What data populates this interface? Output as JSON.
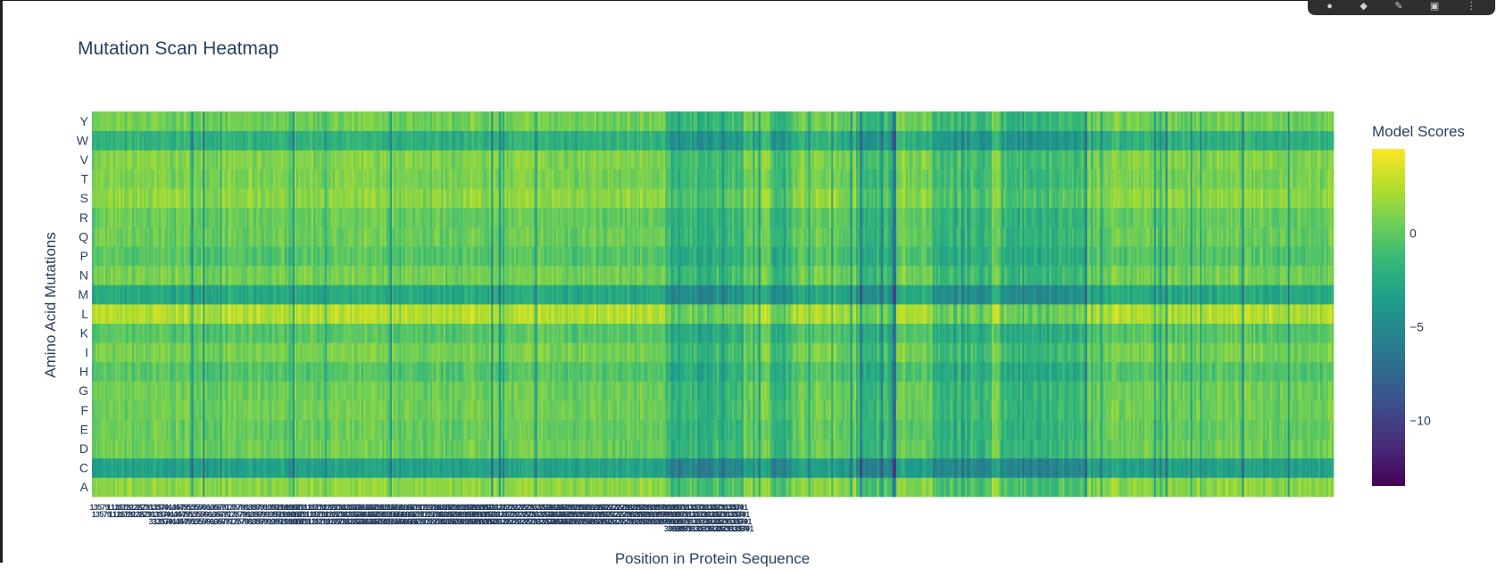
{
  "toolbar": {
    "icons": [
      "camera-icon",
      "zoom-icon",
      "pan-icon",
      "box-select-icon",
      "more-icon"
    ]
  },
  "chart_data": {
    "type": "heatmap",
    "title": "Mutation Scan Heatmap",
    "xlabel": "Position in Protein Sequence",
    "ylabel": "Amino Acid Mutations",
    "y_categories": [
      "A",
      "C",
      "D",
      "E",
      "F",
      "G",
      "H",
      "I",
      "K",
      "L",
      "M",
      "N",
      "P",
      "Q",
      "R",
      "S",
      "T",
      "V",
      "W",
      "Y"
    ],
    "num_positions": 650,
    "colorscale": "viridis",
    "colorscale_stops": [
      "#440154",
      "#482878",
      "#3e4989",
      "#31688e",
      "#26828e",
      "#1f9e89",
      "#35b779",
      "#6ece58",
      "#b5de2b",
      "#fde725"
    ],
    "colorbar": {
      "title": "Model Scores",
      "range": [
        -13.5,
        4.5
      ],
      "ticks": [
        0,
        -5,
        -10
      ],
      "tick_labels": [
        "0",
        "−5",
        "−10"
      ]
    },
    "row_mean_scores": {
      "A": 1.3,
      "C": -3.2,
      "D": 0.4,
      "E": 0.2,
      "F": 0.5,
      "G": 0.4,
      "H": -0.4,
      "I": 0.7,
      "K": -0.3,
      "L": 2.4,
      "M": -2.6,
      "N": 0.6,
      "P": -0.4,
      "Q": 0.3,
      "R": 0.2,
      "S": 1.4,
      "T": 0.8,
      "V": 1.0,
      "W": -2.0,
      "Y": 0.5
    },
    "low_score_position_ranges": [
      [
        300,
        340
      ],
      [
        355,
        365
      ],
      [
        400,
        420
      ],
      [
        440,
        470
      ],
      [
        475,
        520
      ]
    ]
  }
}
